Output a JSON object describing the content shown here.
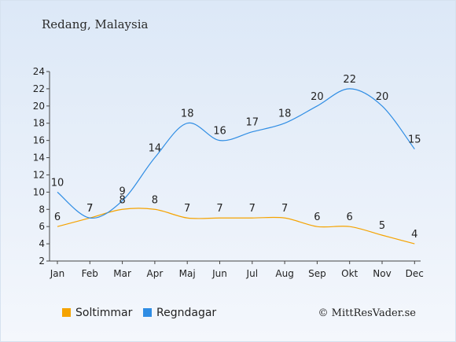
{
  "header": {
    "title": "Redang, Malaysia"
  },
  "credit": "© MittResVader.se",
  "chart_data": {
    "type": "line",
    "categories": [
      "Jan",
      "Feb",
      "Mar",
      "Apr",
      "Maj",
      "Jun",
      "Jul",
      "Aug",
      "Sep",
      "Okt",
      "Nov",
      "Dec"
    ],
    "series": [
      {
        "name": "Soltimmar",
        "color": "#f5a300",
        "values": [
          6,
          7,
          8,
          8,
          7,
          7,
          7,
          7,
          6,
          6,
          5,
          4
        ]
      },
      {
        "name": "Regndagar",
        "color": "#2f8de4",
        "values": [
          10,
          7,
          9,
          14,
          18,
          16,
          17,
          18,
          20,
          22,
          20,
          15
        ]
      }
    ],
    "yticks": [
      2,
      4,
      6,
      8,
      10,
      12,
      14,
      16,
      18,
      20,
      22,
      24
    ],
    "ylim": [
      2,
      24
    ],
    "xlabel": "",
    "ylabel": "",
    "grid": false,
    "legend_position": "bottom"
  }
}
